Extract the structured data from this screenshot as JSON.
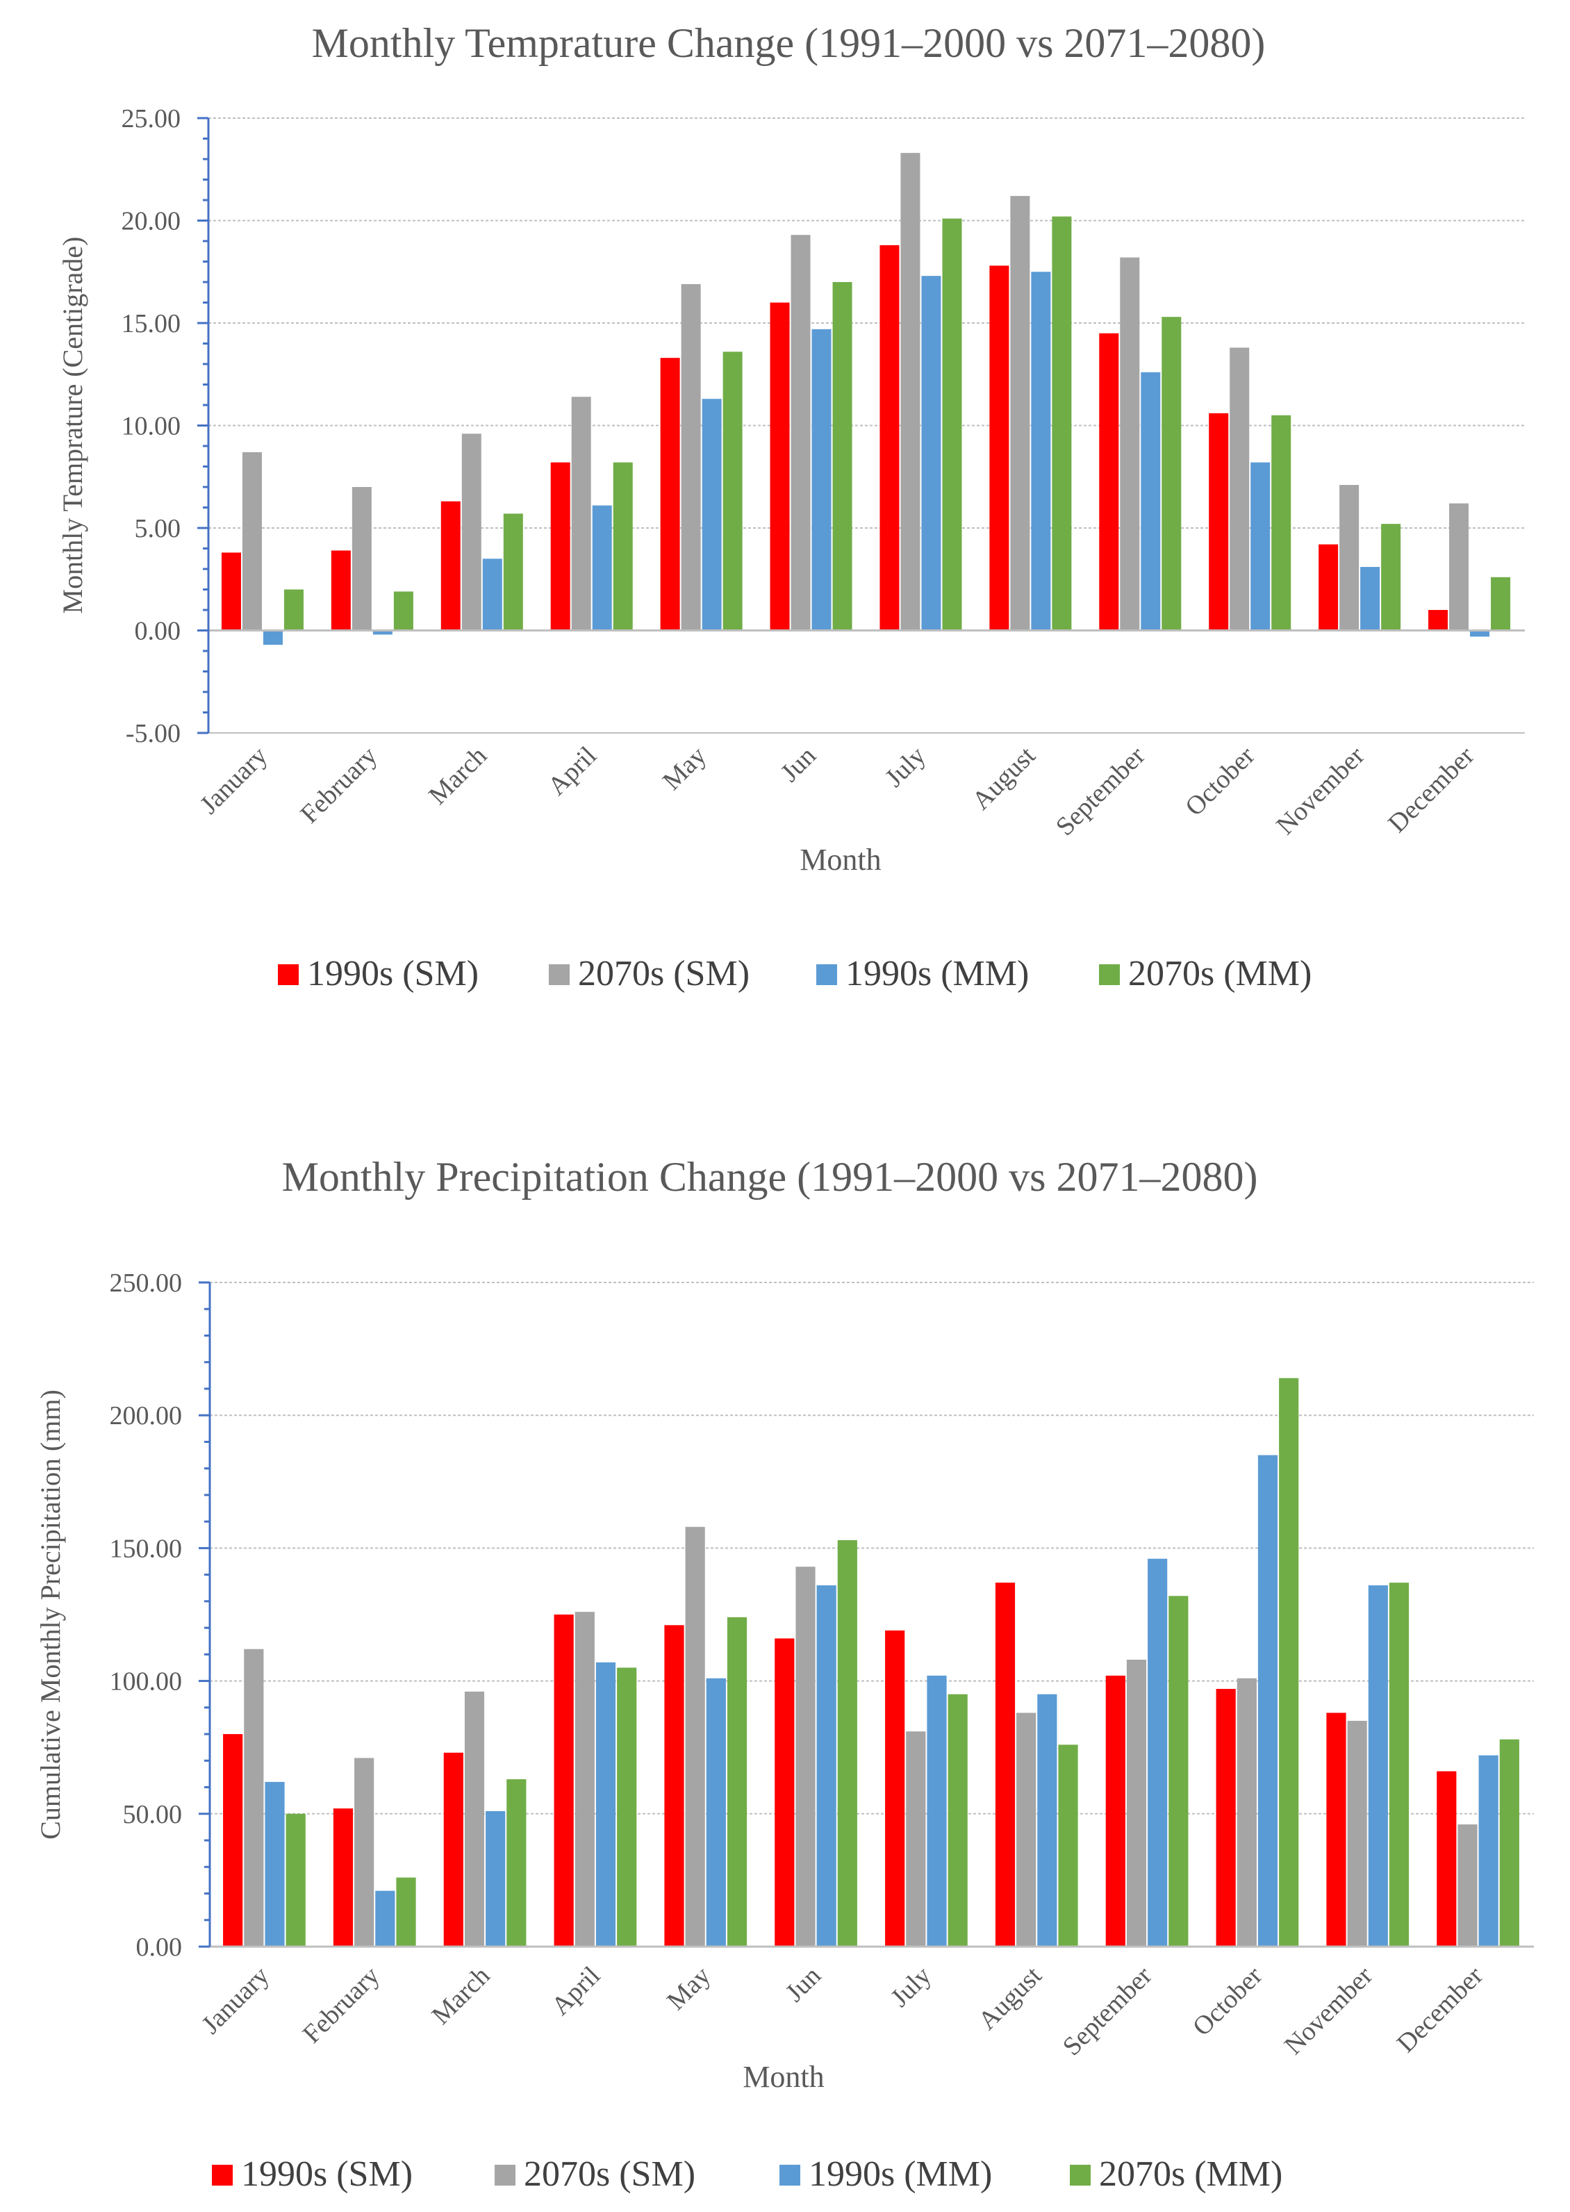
{
  "chart_data": [
    {
      "type": "bar",
      "title": "Monthly Temprature Change (1991–2000 vs 2071–2080)",
      "xlabel": "Month",
      "ylabel": "Monthly Temprature (Centigrade)",
      "ylim": [
        -5,
        25
      ],
      "ytick_step": 5,
      "yticks": [
        "25.00",
        "20.00",
        "15.00",
        "10.00",
        "5.00",
        "0.00",
        "-5.00"
      ],
      "grid": true,
      "legend_position": "bottom",
      "categories": [
        "January",
        "February",
        "March",
        "April",
        "May",
        "Jun",
        "July",
        "August",
        "September",
        "October",
        "November",
        "December"
      ],
      "series": [
        {
          "name": "1990s (SM)",
          "color": "#ff0000",
          "values": [
            3.8,
            3.9,
            6.3,
            8.2,
            13.3,
            16.0,
            18.8,
            17.8,
            14.5,
            10.6,
            4.2,
            1.0
          ]
        },
        {
          "name": "2070s (SM)",
          "color": "#a5a5a5",
          "values": [
            8.7,
            7.0,
            9.6,
            11.4,
            16.9,
            19.3,
            23.3,
            21.2,
            18.2,
            13.8,
            7.1,
            6.2
          ]
        },
        {
          "name": "1990s (MM)",
          "color": "#5b9bd5",
          "values": [
            -0.7,
            -0.2,
            3.5,
            6.1,
            11.3,
            14.7,
            17.3,
            17.5,
            12.6,
            8.2,
            3.1,
            -0.3
          ]
        },
        {
          "name": "2070s (MM)",
          "color": "#70ad47",
          "values": [
            2.0,
            1.9,
            5.7,
            8.2,
            13.6,
            17.0,
            20.1,
            20.2,
            15.3,
            10.5,
            5.2,
            2.6
          ]
        }
      ]
    },
    {
      "type": "bar",
      "title": "Monthly Precipitation Change (1991–2000 vs 2071–2080)",
      "xlabel": "Month",
      "ylabel": "Cumulative Monthly Precipitation (mm)",
      "ylim": [
        0,
        250
      ],
      "ytick_step": 50,
      "yticks": [
        "250.00",
        "200.00",
        "150.00",
        "100.00",
        "50.00",
        "0.00"
      ],
      "grid": true,
      "legend_position": "bottom",
      "categories": [
        "January",
        "February",
        "March",
        "April",
        "May",
        "Jun",
        "July",
        "August",
        "September",
        "October",
        "November",
        "December"
      ],
      "series": [
        {
          "name": "1990s (SM)",
          "color": "#ff0000",
          "values": [
            80,
            52,
            73,
            125,
            121,
            116,
            119,
            137,
            102,
            97,
            88,
            66
          ]
        },
        {
          "name": "2070s (SM)",
          "color": "#a5a5a5",
          "values": [
            112,
            71,
            96,
            126,
            158,
            143,
            81,
            88,
            108,
            101,
            85,
            46
          ]
        },
        {
          "name": "1990s (MM)",
          "color": "#5b9bd5",
          "values": [
            62,
            21,
            51,
            107,
            101,
            136,
            102,
            95,
            146,
            185,
            136,
            72
          ]
        },
        {
          "name": "2070s (MM)",
          "color": "#70ad47",
          "values": [
            50,
            26,
            63,
            105,
            124,
            153,
            95,
            76,
            132,
            214,
            137,
            78
          ]
        }
      ]
    }
  ]
}
